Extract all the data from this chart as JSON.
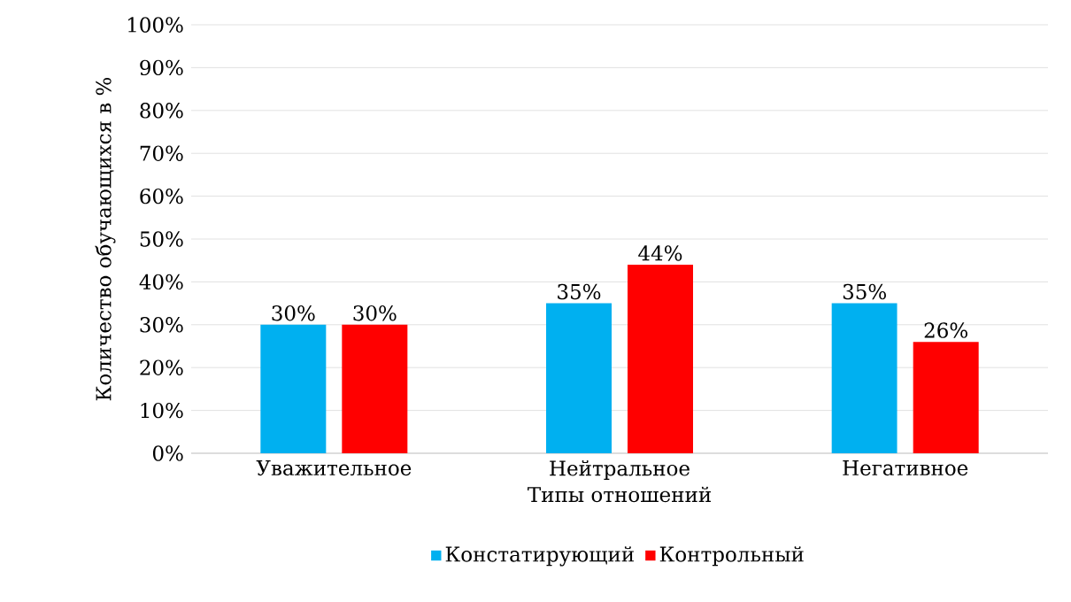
{
  "chart_data": {
    "type": "bar",
    "xlabel": "Типы отношений",
    "ylabel": "Количество обучающихся в %",
    "categories": [
      "Уважительное",
      "Нейтральное",
      "Негативное"
    ],
    "series": [
      {
        "name": "Констатирующий",
        "color": "#00b0f0",
        "values": [
          30,
          35,
          35
        ],
        "value_labels": [
          "30%",
          "35%",
          "35%"
        ]
      },
      {
        "name": "Контрольный",
        "color": "#ff0000",
        "values": [
          30,
          44,
          26
        ],
        "value_labels": [
          "30%",
          "44%",
          "26%"
        ]
      }
    ],
    "ylim": [
      0,
      100
    ],
    "yticks": [
      {
        "value": 0,
        "label": "0%"
      },
      {
        "value": 10,
        "label": "10%"
      },
      {
        "value": 20,
        "label": "20%"
      },
      {
        "value": 30,
        "label": "30%"
      },
      {
        "value": 40,
        "label": "40%"
      },
      {
        "value": 50,
        "label": "50%"
      },
      {
        "value": 60,
        "label": "60%"
      },
      {
        "value": 70,
        "label": "70%"
      },
      {
        "value": 80,
        "label": "80%"
      },
      {
        "value": 90,
        "label": "90%"
      },
      {
        "value": 100,
        "label": "100%"
      }
    ],
    "grid": "y",
    "legend": "bottom"
  }
}
